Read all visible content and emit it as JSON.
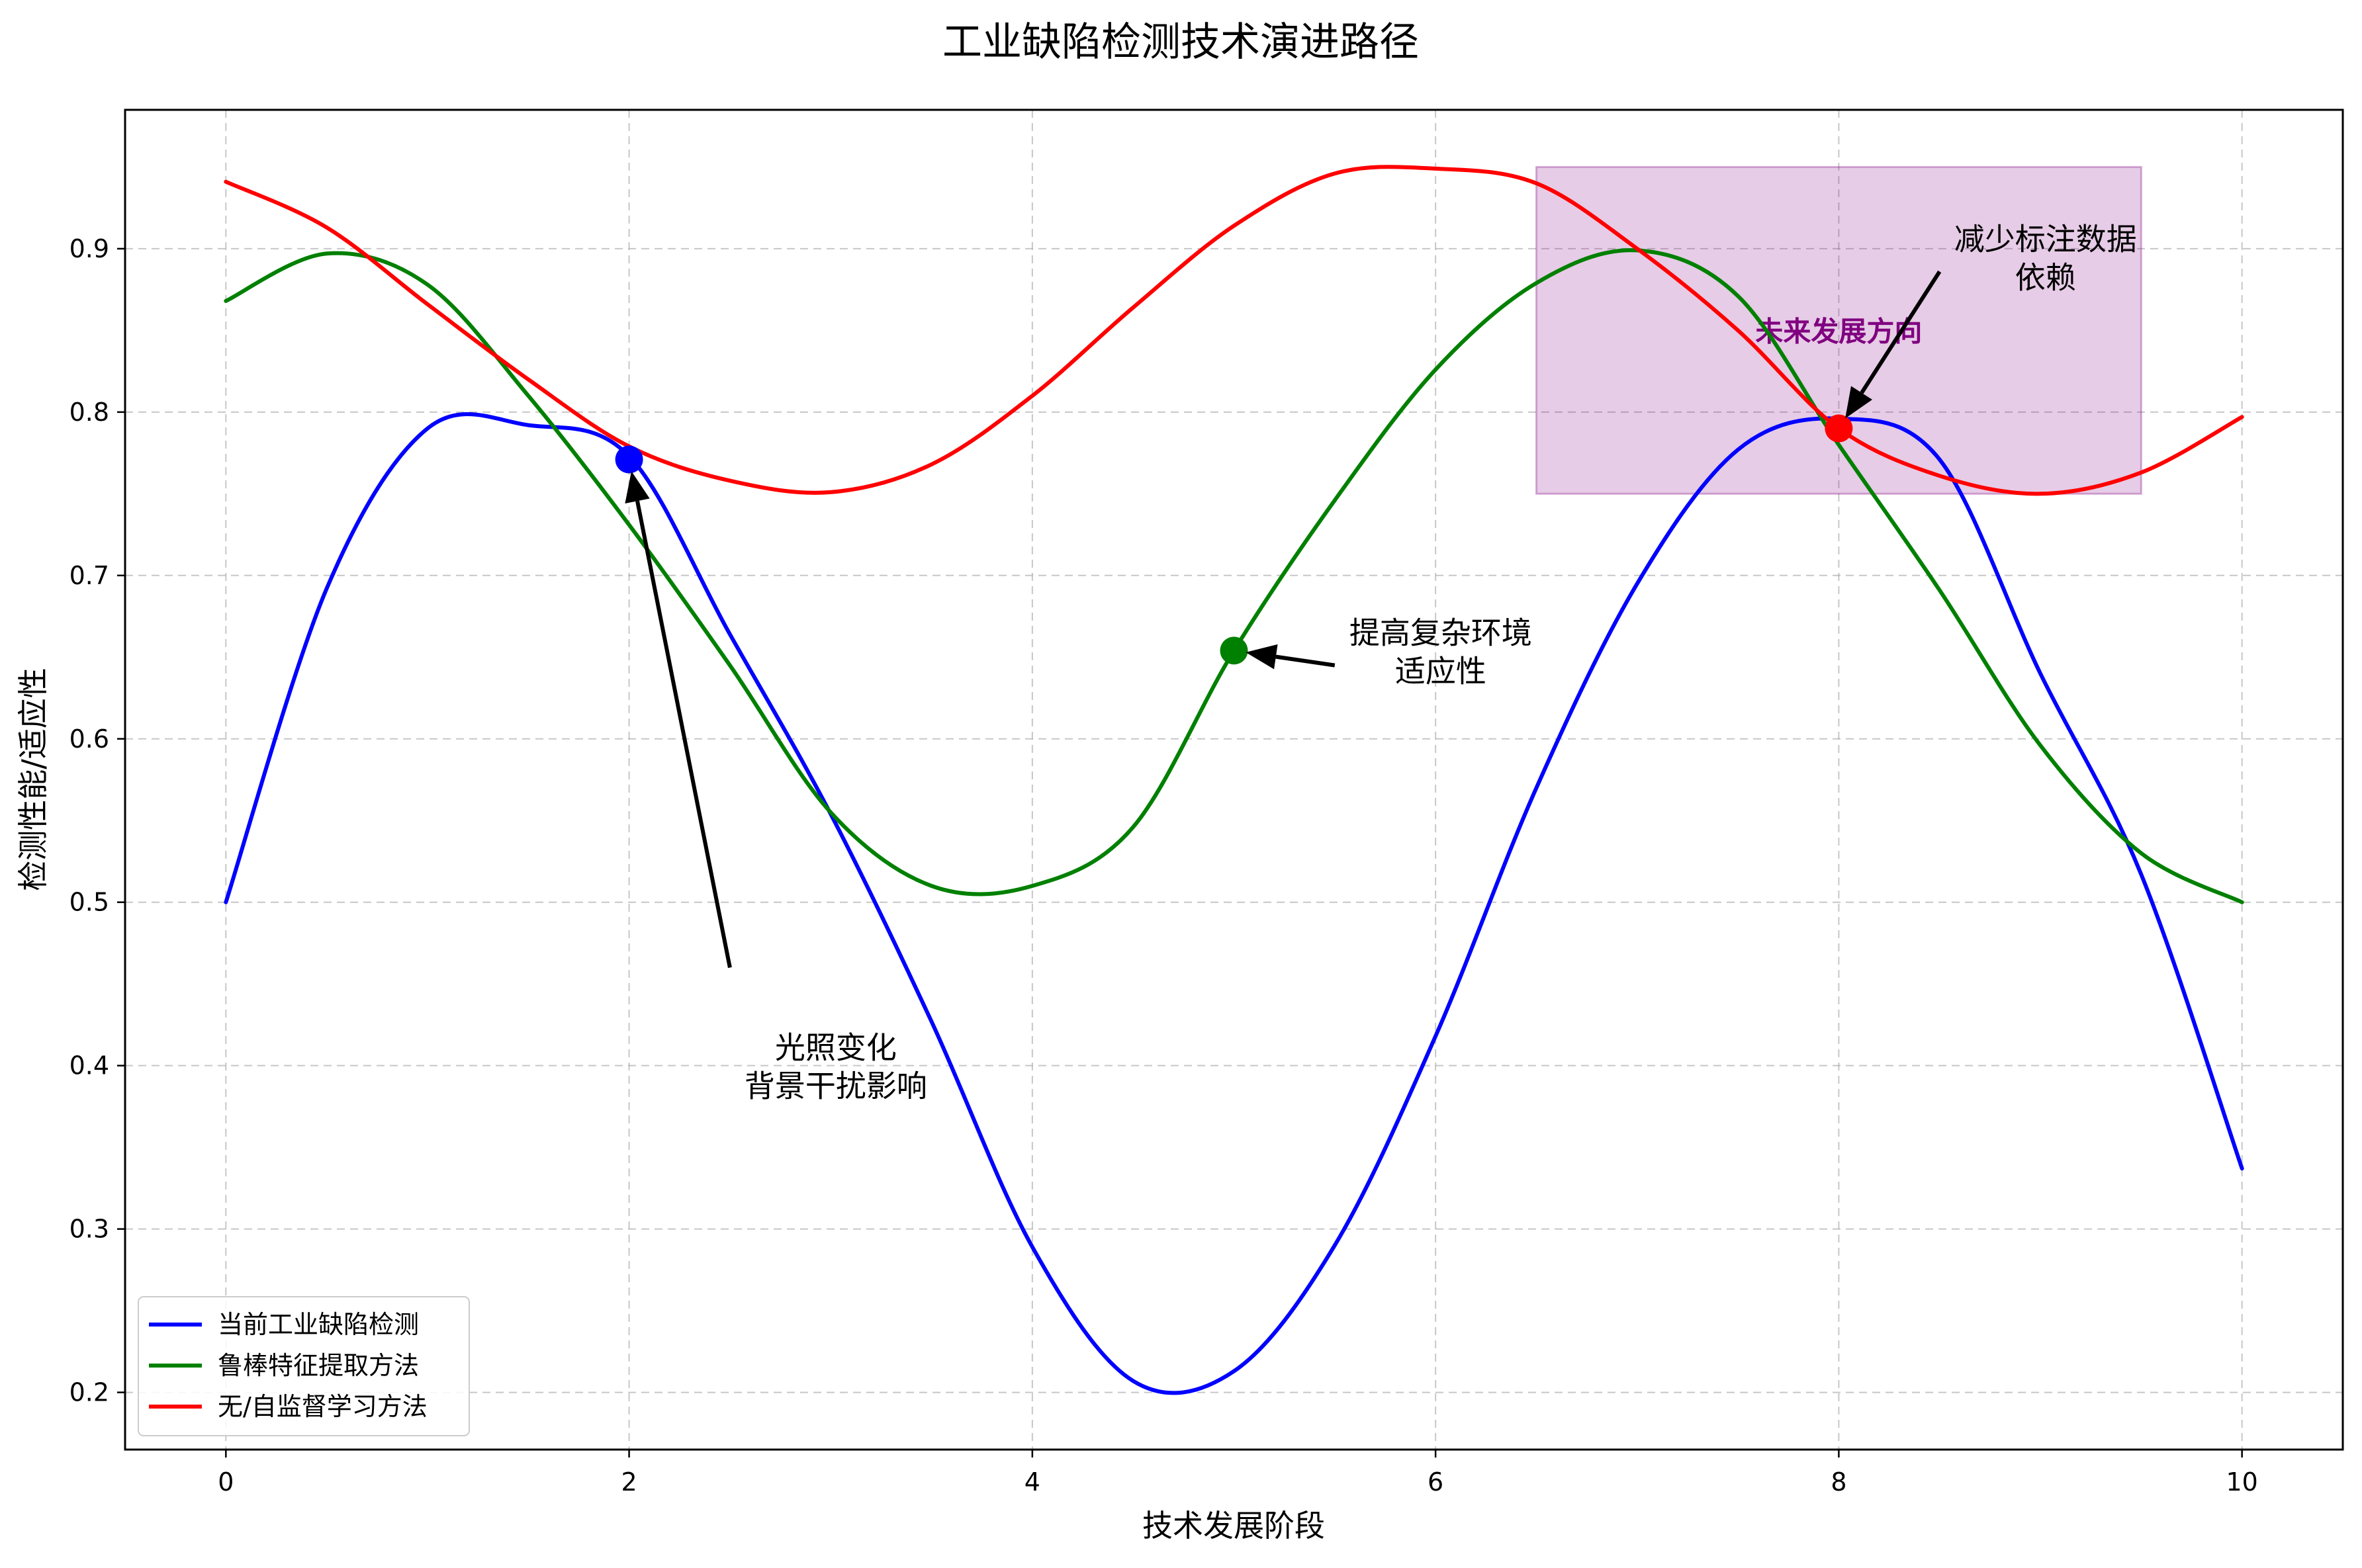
{
  "chart_data": {
    "type": "line",
    "title": "工业缺陷检测技术演进路径",
    "xlabel": "技术发展阶段",
    "ylabel": "检测性能/适应性",
    "xlim": [
      -0.5,
      10.5
    ],
    "ylim": [
      0.165,
      0.985
    ],
    "xticks": [
      0,
      2,
      4,
      6,
      8,
      10
    ],
    "xtick_labels": [
      "0",
      "2",
      "4",
      "6",
      "8",
      "10"
    ],
    "yticks": [
      0.2,
      0.3,
      0.4,
      0.5,
      0.6,
      0.7,
      0.8,
      0.9
    ],
    "ytick_labels": [
      "0.2",
      "0.3",
      "0.4",
      "0.5",
      "0.6",
      "0.7",
      "0.8",
      "0.9"
    ],
    "grid": true,
    "legend_position": "lower-left",
    "x": [
      0,
      0.5,
      1,
      1.5,
      2,
      2.5,
      3,
      3.5,
      4,
      4.5,
      5,
      5.5,
      6,
      6.5,
      7,
      7.5,
      8,
      8.5,
      9,
      9.5,
      10
    ],
    "series": [
      {
        "name": "当前工业缺陷检测",
        "color": "#0000ff",
        "values": [
          0.5,
          0.692,
          0.79,
          0.792,
          0.773,
          0.664,
          0.554,
          0.427,
          0.289,
          0.207,
          0.213,
          0.29,
          0.418,
          0.57,
          0.695,
          0.777,
          0.796,
          0.771,
          0.64,
          0.517,
          0.337
        ]
      },
      {
        "name": "鲁棒特征提取方法",
        "color": "#008000",
        "values": [
          0.868,
          0.897,
          0.878,
          0.81,
          0.731,
          0.645,
          0.555,
          0.51,
          0.51,
          0.546,
          0.654,
          0.746,
          0.826,
          0.879,
          0.899,
          0.871,
          0.78,
          0.691,
          0.596,
          0.53,
          0.5
        ]
      },
      {
        "name": "无/自监督学习方法",
        "color": "#ff0000",
        "values": [
          0.941,
          0.913,
          0.866,
          0.82,
          0.779,
          0.758,
          0.751,
          0.768,
          0.81,
          0.864,
          0.914,
          0.946,
          0.949,
          0.94,
          0.9,
          0.85,
          0.79,
          0.761,
          0.75,
          0.763,
          0.797
        ]
      }
    ],
    "highlight_region": {
      "x": [
        6.5,
        9.5
      ],
      "y": [
        0.75,
        0.95
      ],
      "color": "#800080",
      "label": "未来发展方向"
    },
    "annotations": [
      {
        "text_lines": [
          "光照变化",
          "背景干扰影响"
        ],
        "point": [
          2,
          0.771
        ],
        "text_pos": [
          2.5,
          0.46
        ],
        "point_color": "#0000ff"
      },
      {
        "text_lines": [
          "提高复杂环境",
          "适应性"
        ],
        "point": [
          5,
          0.654
        ],
        "text_pos": [
          5.5,
          0.645
        ],
        "point_color": "#008000"
      },
      {
        "text_lines": [
          "减少标注数据",
          "依赖"
        ],
        "point": [
          8,
          0.79
        ],
        "text_pos": [
          8.5,
          0.886
        ],
        "point_color": "#ff0000"
      }
    ]
  }
}
